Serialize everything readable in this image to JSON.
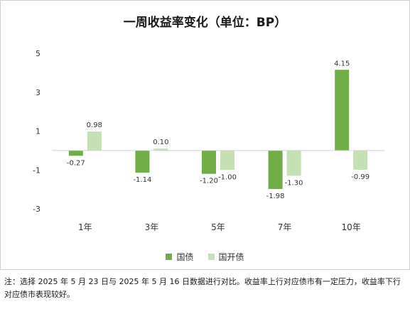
{
  "chart_data": {
    "type": "bar",
    "title": "一周收益率变化（单位：BP）",
    "categories": [
      "1年",
      "3年",
      "5年",
      "7年",
      "10年"
    ],
    "series": [
      {
        "name": "国债",
        "color": "#70ad47",
        "values": [
          -0.27,
          -1.14,
          -1.2,
          -1.98,
          4.15
        ]
      },
      {
        "name": "国开债",
        "color": "#c5e0b4",
        "values": [
          0.98,
          0.1,
          -1.0,
          -1.3,
          -0.99
        ]
      }
    ],
    "value_labels": [
      [
        "-0.27",
        "-1.14",
        "-1.20",
        "-1.98",
        "4.15"
      ],
      [
        "0.98",
        "0.10",
        "-1.00",
        "-1.30",
        "-0.99"
      ]
    ],
    "yticks": [
      "5",
      "3",
      "1",
      "-1",
      "-3"
    ],
    "ytick_values": [
      5,
      3,
      1,
      -1,
      -3
    ],
    "ylim": [
      -3,
      5
    ],
    "grid": false,
    "legend_position": "bottom"
  },
  "note": "注：选择 2025 年 5 月 23 日与 2025 年 5 月 16 日数据进行对比。收益率上行对应债市有一定压力，收益率下行对应债市表现较好。"
}
